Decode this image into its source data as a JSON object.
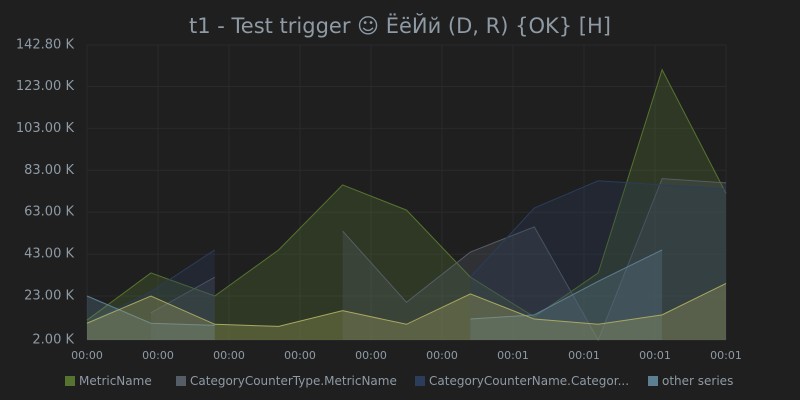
{
  "chart_data": {
    "type": "area",
    "title": "t1 - Test trigger ☺ ЁёЙй (D, R) {OK} [H]",
    "x": [
      0,
      9,
      18,
      27,
      36,
      45,
      54,
      63,
      72,
      81,
      90
    ],
    "xlim": [
      0,
      90
    ],
    "xticks": [
      {
        "value": 0,
        "label": "00:00"
      },
      {
        "value": 10,
        "label": "00:00"
      },
      {
        "value": 20,
        "label": "00:00"
      },
      {
        "value": 30,
        "label": "00:00"
      },
      {
        "value": 40,
        "label": "00:00"
      },
      {
        "value": 50,
        "label": "00:00"
      },
      {
        "value": 60,
        "label": "00:01"
      },
      {
        "value": 70,
        "label": "00:01"
      },
      {
        "value": 80,
        "label": "00:01"
      },
      {
        "value": 90,
        "label": "00:01"
      }
    ],
    "ylim": [
      2000,
      142800
    ],
    "yticks": [
      {
        "value": 2000,
        "label": "2.00 K"
      },
      {
        "value": 23000,
        "label": "23.00 K"
      },
      {
        "value": 43000,
        "label": "43.00 K"
      },
      {
        "value": 63000,
        "label": "63.00 K"
      },
      {
        "value": 83000,
        "label": "83.00 K"
      },
      {
        "value": 103000,
        "label": "103.00 K"
      },
      {
        "value": 123000,
        "label": "123.00 K"
      },
      {
        "value": 142800,
        "label": "142.80 K"
      }
    ],
    "grid": true,
    "legend": "bottom",
    "series": [
      {
        "name": "MetricName",
        "color": "#56742f",
        "values": [
          11500,
          34000,
          23000,
          45000,
          76000,
          64000,
          32000,
          13000,
          34000,
          131000,
          72000
        ]
      },
      {
        "name": "CategoryCounterType.MetricName",
        "color": "#555d66",
        "values": [
          null,
          15000,
          32000,
          null,
          54000,
          20000,
          44000,
          56000,
          2000,
          79000,
          77000
        ]
      },
      {
        "name": "CategoryCounterName.Categor...",
        "color": "#2b3d5a",
        "values": [
          10000,
          25000,
          45000,
          null,
          null,
          null,
          32000,
          65000,
          78000,
          76000,
          74000
        ]
      },
      {
        "name": "other series",
        "color": "#5d7f92",
        "values": [
          23000,
          10000,
          9000,
          null,
          null,
          null,
          12000,
          14000,
          30000,
          45000,
          null
        ]
      },
      {
        "color": "#a8a860",
        "values": [
          10000,
          23000,
          9500,
          8500,
          16000,
          9500,
          24000,
          12000,
          9500,
          14000,
          29000
        ]
      }
    ]
  }
}
